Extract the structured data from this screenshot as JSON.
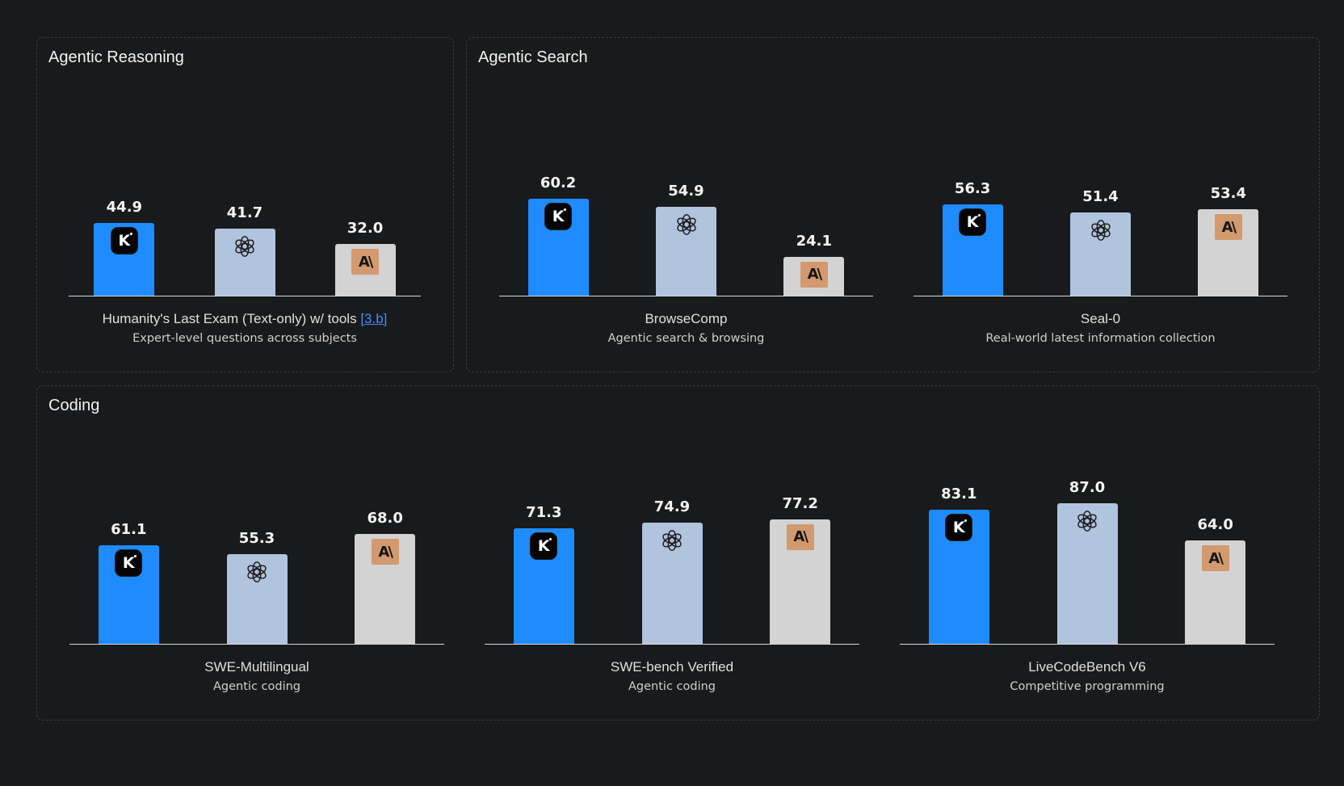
{
  "colors": {
    "kimi": "#1e8cff",
    "openai": "#b0c4de",
    "anthropic": "#d3d3d3",
    "background": "#181a1b"
  },
  "sections": [
    {
      "title": "Agentic Reasoning"
    },
    {
      "title": "Agentic Search"
    },
    {
      "title": "Coding"
    }
  ],
  "chart_data": [
    {
      "type": "bar",
      "section": "Agentic Reasoning",
      "title": "Humanity's Last Exam (Text-only) w/ tools",
      "link": "[3.b]",
      "subtitle": "Expert-level questions across subjects",
      "series": [
        {
          "logo": "kimi-k-icon",
          "value": 44.9
        },
        {
          "logo": "openai-icon",
          "value": 41.7
        },
        {
          "logo": "anthropic-icon",
          "value": 32.0
        }
      ]
    },
    {
      "type": "bar",
      "section": "Agentic Search",
      "title": "BrowseComp",
      "subtitle": "Agentic search & browsing",
      "series": [
        {
          "logo": "kimi-k-icon",
          "value": 60.2
        },
        {
          "logo": "openai-icon",
          "value": 54.9
        },
        {
          "logo": "anthropic-icon",
          "value": 24.1
        }
      ]
    },
    {
      "type": "bar",
      "section": "Agentic Search",
      "title": "Seal-0",
      "subtitle": "Real-world latest information collection",
      "series": [
        {
          "logo": "kimi-k-icon",
          "value": 56.3
        },
        {
          "logo": "openai-icon",
          "value": 51.4
        },
        {
          "logo": "anthropic-icon",
          "value": 53.4
        }
      ]
    },
    {
      "type": "bar",
      "section": "Coding",
      "title": "SWE-Multilingual",
      "subtitle": "Agentic coding",
      "series": [
        {
          "logo": "kimi-k-icon",
          "value": 61.1
        },
        {
          "logo": "openai-icon",
          "value": 55.3
        },
        {
          "logo": "anthropic-icon",
          "value": 68.0
        }
      ]
    },
    {
      "type": "bar",
      "section": "Coding",
      "title": "SWE-bench Verified",
      "subtitle": "Agentic coding",
      "series": [
        {
          "logo": "kimi-k-icon",
          "value": 71.3
        },
        {
          "logo": "openai-icon",
          "value": 74.9
        },
        {
          "logo": "anthropic-icon",
          "value": 77.2
        }
      ]
    },
    {
      "type": "bar",
      "section": "Coding",
      "title": "LiveCodeBench V6",
      "subtitle": "Competitive programming",
      "series": [
        {
          "logo": "kimi-k-icon",
          "value": 83.1
        },
        {
          "logo": "openai-icon",
          "value": 87.0
        },
        {
          "logo": "anthropic-icon",
          "value": 64.0
        }
      ]
    }
  ]
}
